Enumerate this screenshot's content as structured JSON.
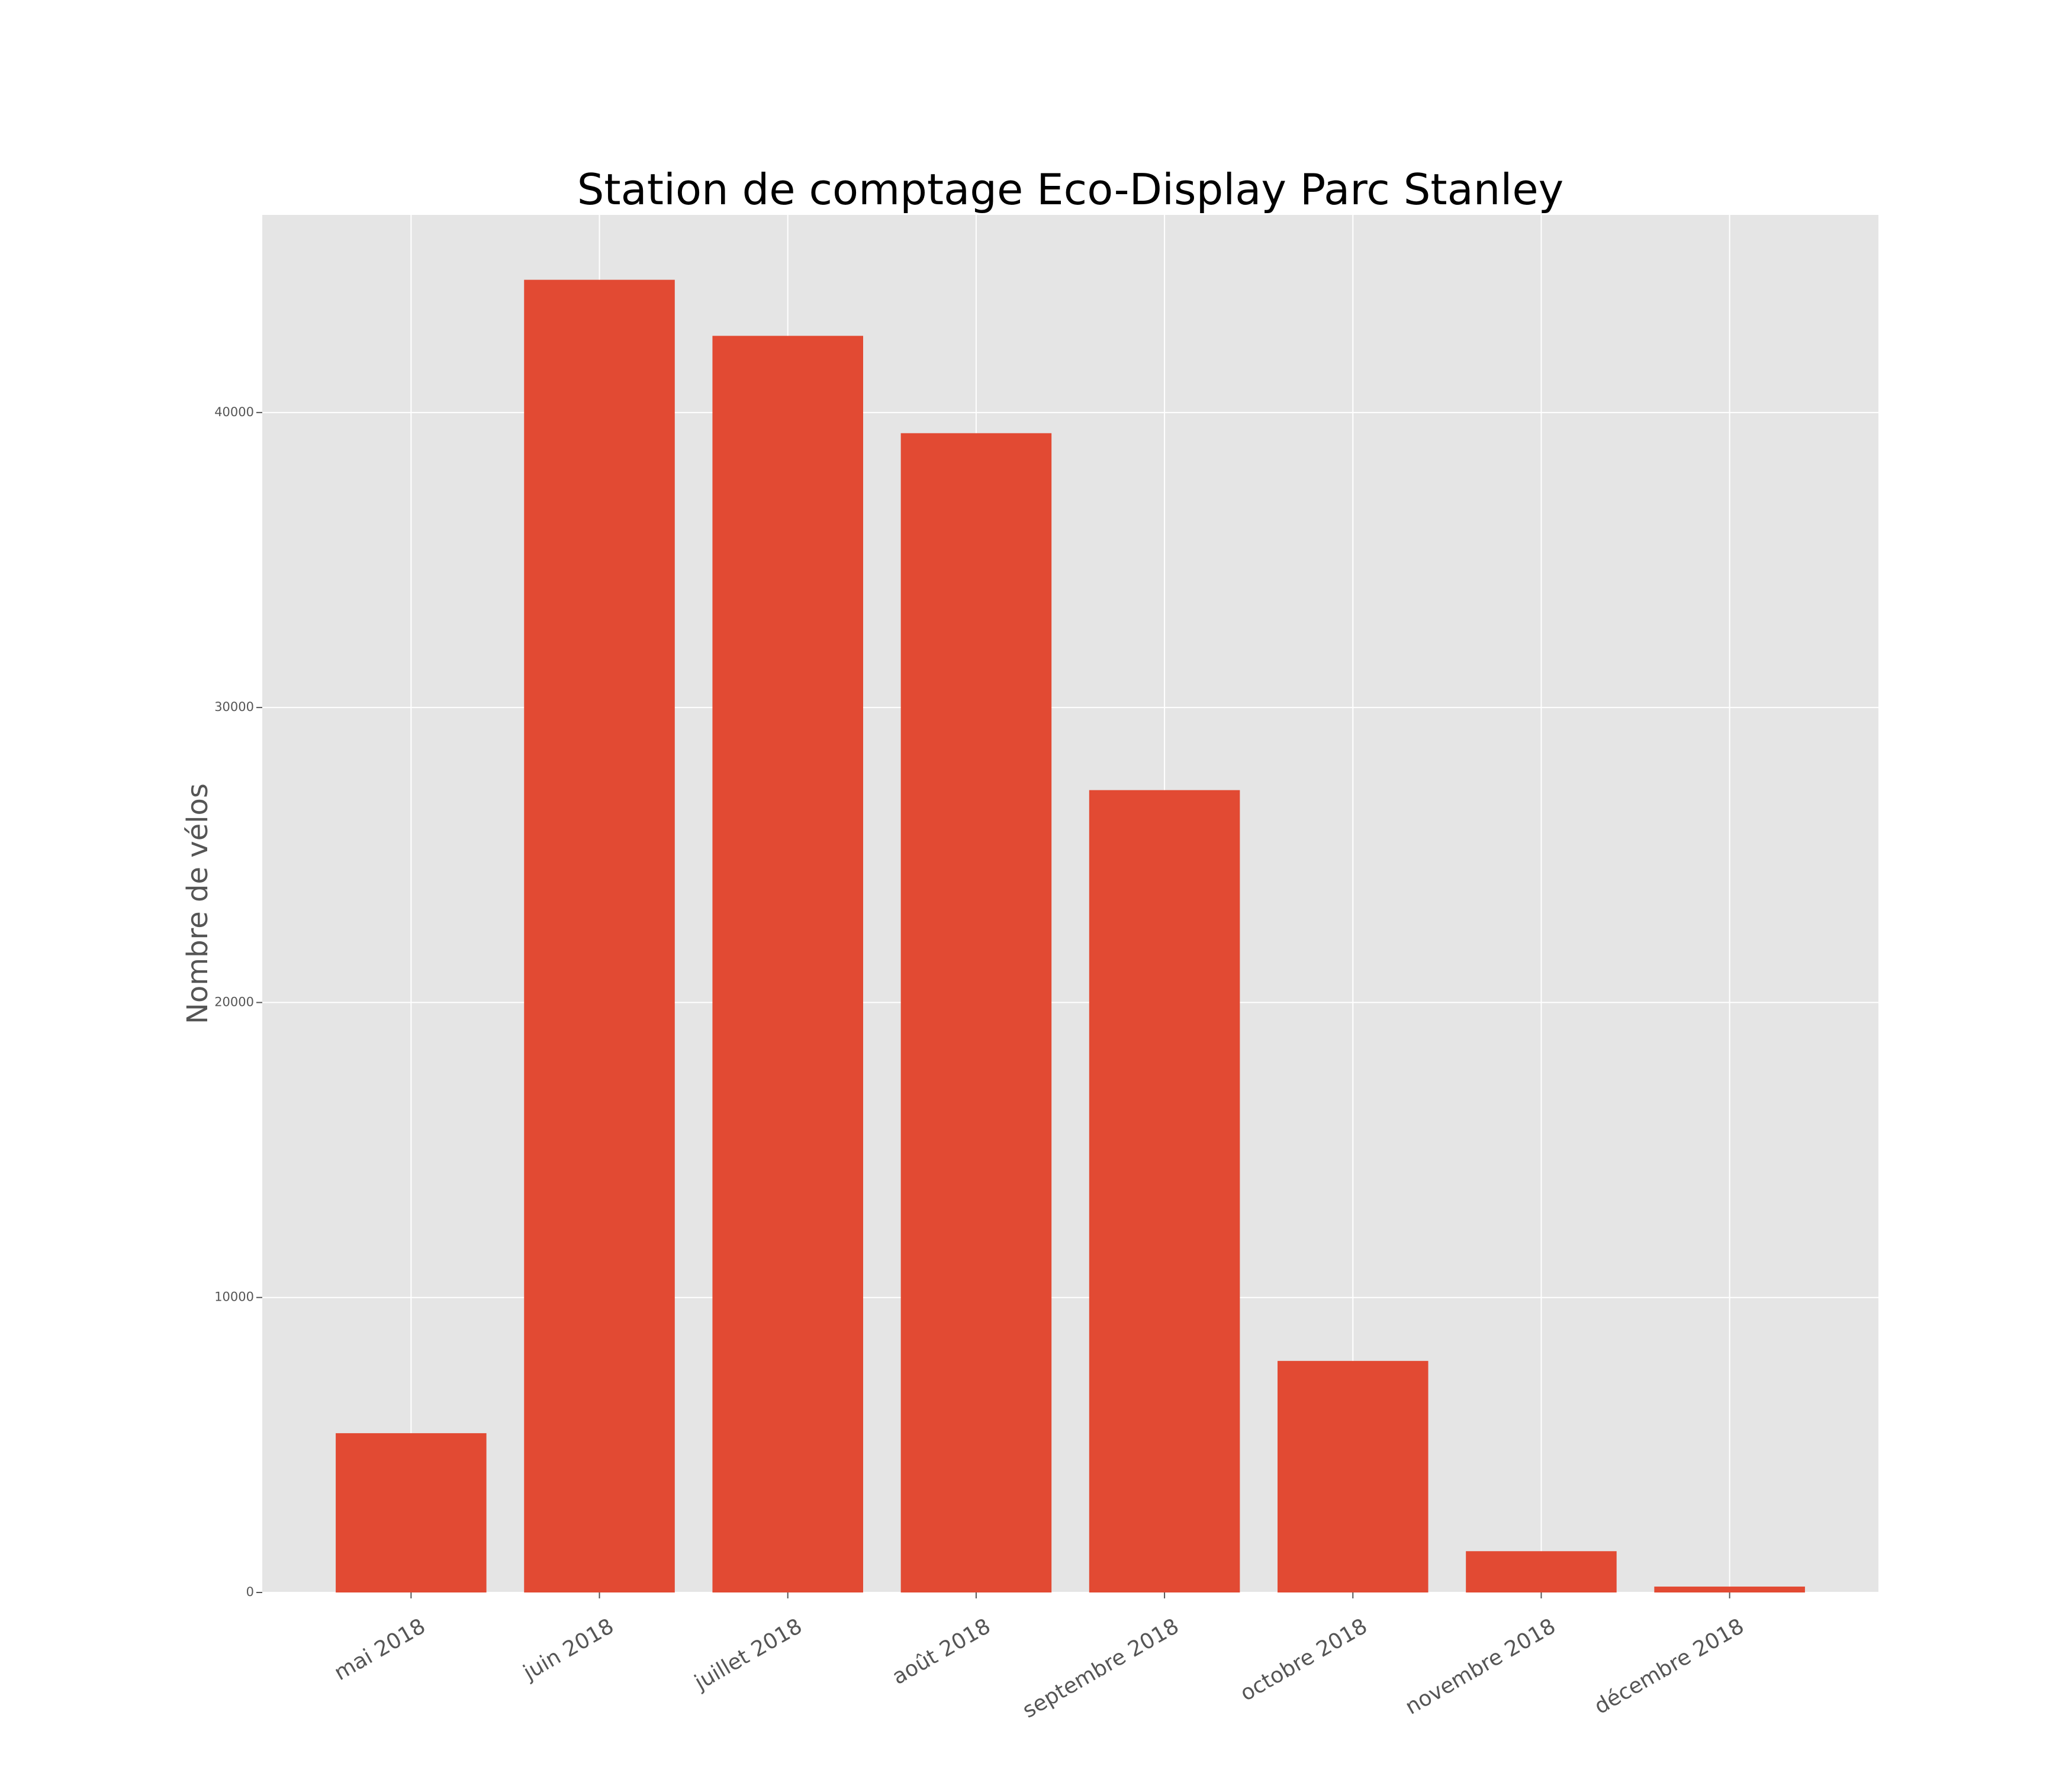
{
  "chart_data": {
    "type": "bar",
    "title": "Station de comptage Eco-Display Parc Stanley",
    "xlabel": "",
    "ylabel": "Nombre de vélos",
    "categories": [
      "mai 2018",
      "juin 2018",
      "juillet 2018",
      "août 2018",
      "septembre 2018",
      "octobre 2018",
      "novembre 2018",
      "décembre 2018"
    ],
    "values": [
      5400,
      44500,
      42600,
      39300,
      27200,
      7850,
      1400,
      200
    ],
    "ylim": [
      0,
      46700
    ],
    "yticks": [
      0,
      10000,
      20000,
      30000,
      40000
    ],
    "ytick_labels": [
      "0",
      "10000",
      "20000",
      "30000",
      "40000"
    ],
    "grid": true,
    "legend": "none",
    "colors": {
      "bar": "#E24A33",
      "plot_background": "#E5E5E5",
      "grid": "#FFFFFF",
      "title": "#000000",
      "label": "#555555"
    }
  }
}
